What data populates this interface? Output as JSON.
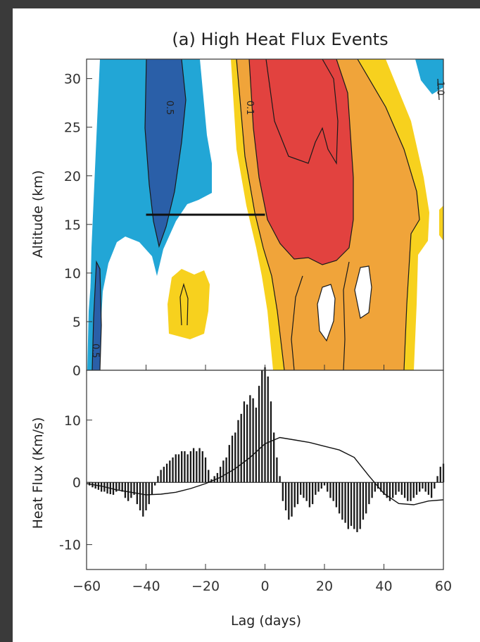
{
  "figure": {
    "title": "(a) High Heat Flux Events"
  },
  "chart_data": [
    {
      "type": "heatmap",
      "panel": "top",
      "title": "(a) High Heat Flux Events",
      "xlabel": "",
      "ylabel": "Altitude (km)",
      "xlim": [
        -60,
        60
      ],
      "ylim": [
        0,
        32
      ],
      "yticks": [
        0,
        5,
        10,
        15,
        20,
        25,
        30
      ],
      "contour_labels": [
        {
          "text": "0.5",
          "x": -33,
          "y": 27
        },
        {
          "text": "0.1",
          "x": -6,
          "y": 27
        },
        {
          "text": "1.0",
          "x": 58,
          "y": 29
        },
        {
          "text": "0.5",
          "x": -58,
          "y": 2
        }
      ],
      "reference_line": {
        "x": [
          -40,
          0
        ],
        "y": 16
      },
      "colors": {
        "light_blue": "#22a6d6",
        "dark_blue": "#2a5fa8",
        "yellow": "#f7d11e",
        "orange": "#f0a43a",
        "red": "#e2423f"
      },
      "grid": false
    },
    {
      "type": "bar",
      "panel": "bottom",
      "xlabel": "Lag (days)",
      "ylabel": "Heat Flux (Km/s)",
      "xlim": [
        -60,
        60
      ],
      "ylim": [
        -14,
        18
      ],
      "xticks": [
        -60,
        -40,
        -20,
        0,
        20,
        40,
        60
      ],
      "yticks": [
        -10,
        0,
        10
      ],
      "bars": {
        "x": [
          -59,
          -58,
          -57,
          -56,
          -55,
          -54,
          -53,
          -52,
          -51,
          -50,
          -49,
          -48,
          -47,
          -46,
          -45,
          -44,
          -43,
          -42,
          -41,
          -40,
          -39,
          -38,
          -37,
          -36,
          -35,
          -34,
          -33,
          -32,
          -31,
          -30,
          -29,
          -28,
          -27,
          -26,
          -25,
          -24,
          -23,
          -22,
          -21,
          -20,
          -19,
          -18,
          -17,
          -16,
          -15,
          -14,
          -13,
          -12,
          -11,
          -10,
          -9,
          -8,
          -7,
          -6,
          -5,
          -4,
          -3,
          -2,
          -1,
          0,
          1,
          2,
          3,
          4,
          5,
          6,
          7,
          8,
          9,
          10,
          11,
          12,
          13,
          14,
          15,
          16,
          17,
          18,
          19,
          20,
          21,
          22,
          23,
          24,
          25,
          26,
          27,
          28,
          29,
          30,
          31,
          32,
          33,
          34,
          35,
          36,
          37,
          38,
          39,
          40,
          41,
          42,
          43,
          44,
          45,
          46,
          47,
          48,
          49,
          50,
          51,
          52,
          53,
          54,
          55,
          56,
          57,
          58,
          59,
          60
        ],
        "values": [
          -0.5,
          -0.8,
          -1.0,
          -1.2,
          -1.5,
          -1.5,
          -1.8,
          -1.9,
          -2.0,
          -1.5,
          -1.2,
          -1.5,
          -2.5,
          -3.0,
          -2.5,
          -2.0,
          -3.5,
          -4.5,
          -5.5,
          -4.5,
          -3.5,
          -2.0,
          -0.5,
          1.0,
          2.0,
          2.5,
          3.0,
          3.5,
          4.0,
          4.5,
          4.5,
          5.0,
          5.0,
          4.5,
          5.0,
          5.5,
          5.0,
          5.5,
          5.0,
          4.0,
          2.0,
          0.5,
          1.0,
          1.5,
          2.5,
          3.5,
          4.0,
          6.0,
          7.5,
          8.0,
          10.0,
          11.0,
          13.0,
          12.5,
          14.0,
          13.5,
          12.0,
          15.5,
          18.0,
          18.5,
          17.0,
          13.0,
          8.0,
          4.0,
          1.0,
          -3.0,
          -4.5,
          -6.0,
          -5.5,
          -4.0,
          -3.5,
          -2.0,
          -2.5,
          -3.0,
          -4.0,
          -3.5,
          -2.0,
          -1.5,
          -1.0,
          -0.5,
          -1.5,
          -2.5,
          -3.0,
          -4.0,
          -5.0,
          -6.0,
          -6.5,
          -7.5,
          -7.0,
          -7.5,
          -8.0,
          -7.5,
          -6.0,
          -5.0,
          -3.5,
          -2.5,
          -1.5,
          -1.0,
          -1.5,
          -2.0,
          -2.5,
          -3.0,
          -2.5,
          -2.0,
          -1.5,
          -2.0,
          -2.5,
          -3.0,
          -3.0,
          -2.5,
          -2.0,
          -1.5,
          -1.0,
          -1.5,
          -2.0,
          -2.5,
          -1.0,
          1.0,
          2.5,
          3.0
        ]
      },
      "line": {
        "x": [
          -60,
          -55,
          -50,
          -45,
          -40,
          -35,
          -30,
          -25,
          -20,
          -15,
          -10,
          -5,
          0,
          5,
          10,
          15,
          20,
          25,
          30,
          35,
          40,
          45,
          50,
          55,
          60
        ],
        "y": [
          -0.2,
          -0.6,
          -1.2,
          -1.6,
          -2.0,
          -1.9,
          -1.6,
          -1.0,
          -0.2,
          0.8,
          2.2,
          4.0,
          6.2,
          7.2,
          6.8,
          6.4,
          5.8,
          5.2,
          4.0,
          1.0,
          -1.8,
          -3.4,
          -3.6,
          -3.0,
          -2.8
        ]
      },
      "grid": false
    }
  ]
}
